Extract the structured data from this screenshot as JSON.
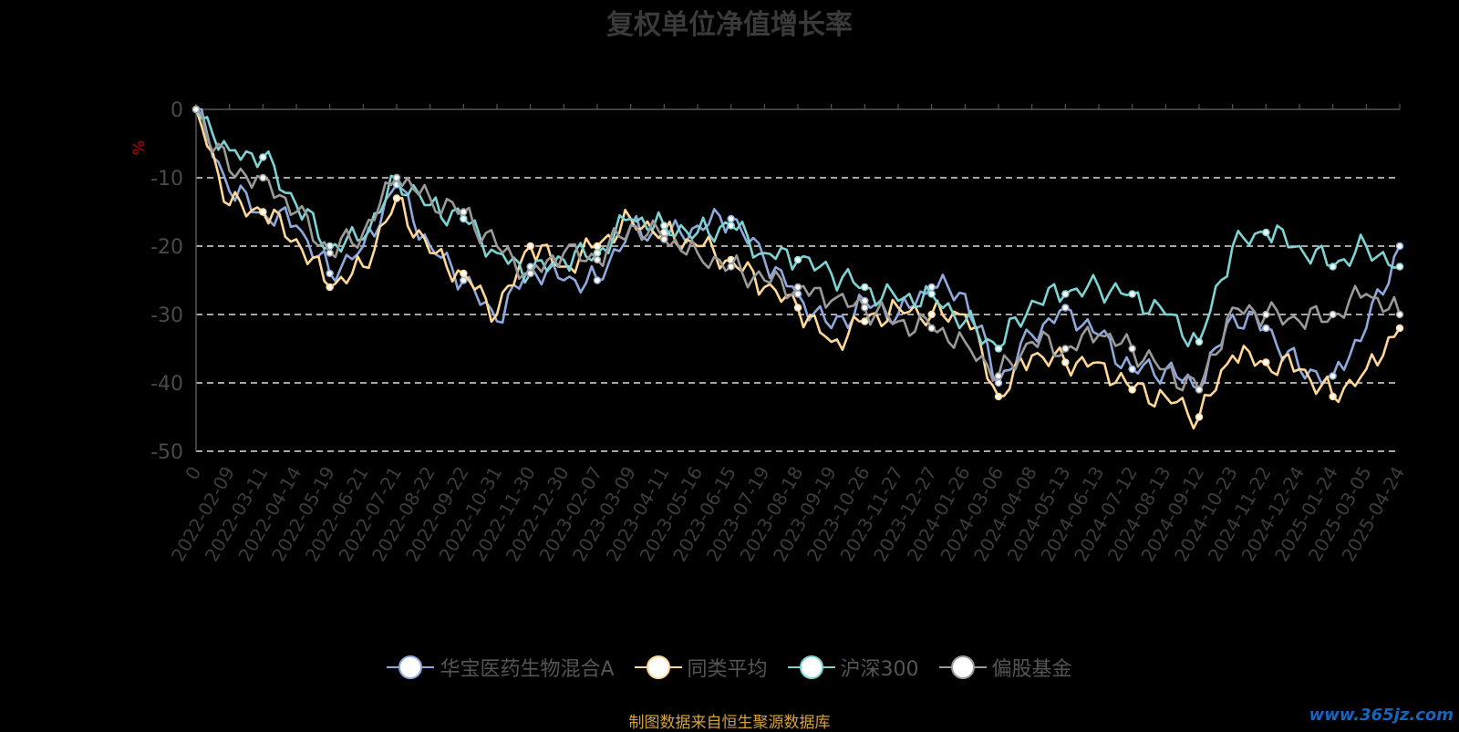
{
  "chart_data": {
    "type": "line",
    "title": "复权单位净值增长率",
    "ylabel": "%",
    "ylim": [
      -50,
      0
    ],
    "yticks": [
      0,
      -10,
      -20,
      -30,
      -40,
      -50
    ],
    "grid": true,
    "legend_position": "bottom",
    "x_tick_labels": [
      "0",
      "2022-02-09",
      "2022-03-11",
      "2022-04-14",
      "2022-05-19",
      "2022-06-21",
      "2022-07-21",
      "2022-08-22",
      "2022-09-22",
      "2022-10-31",
      "2022-11-30",
      "2022-12-30",
      "2023-02-07",
      "2023-03-09",
      "2023-04-11",
      "2023-05-16",
      "2023-06-15",
      "2023-07-19",
      "2023-08-18",
      "2023-09-19",
      "2023-10-26",
      "2023-11-27",
      "2023-12-27",
      "2024-01-26",
      "2024-03-06",
      "2024-04-08",
      "2024-05-13",
      "2024-06-13",
      "2024-07-12",
      "2024-08-13",
      "2024-09-12",
      "2024-10-23",
      "2024-11-22",
      "2024-12-24",
      "2025-01-24",
      "2025-03-05",
      "2025-04-24"
    ],
    "series": [
      {
        "name": "华宝医药生物混合A",
        "color": "#8fa9dc",
        "values": [
          0,
          -12,
          -15,
          -17,
          -24,
          -20,
          -11,
          -20,
          -25,
          -31,
          -23,
          -25,
          -25,
          -17,
          -19,
          -17,
          -16,
          -22,
          -27,
          -32,
          -28,
          -30,
          -26,
          -27,
          -40,
          -33,
          -29,
          -33,
          -38,
          -38,
          -41,
          -30,
          -32,
          -38,
          -39,
          -32,
          -20
        ]
      },
      {
        "name": "同类平均",
        "color": "#ffd898",
        "values": [
          0,
          -14,
          -15,
          -19,
          -26,
          -23,
          -13,
          -21,
          -24,
          -30,
          -20,
          -23,
          -20,
          -16,
          -18,
          -20,
          -22,
          -26,
          -29,
          -34,
          -31,
          -29,
          -30,
          -30,
          -42,
          -36,
          -37,
          -37,
          -41,
          -42,
          -45,
          -36,
          -37,
          -38,
          -42,
          -38,
          -32
        ]
      },
      {
        "name": "沪深300",
        "color": "#7ed3d3",
        "values": [
          0,
          -6,
          -7,
          -14,
          -20,
          -19,
          -10,
          -14,
          -16,
          -21,
          -24,
          -22,
          -21,
          -16,
          -17,
          -18,
          -17,
          -21,
          -22,
          -24,
          -26,
          -28,
          -27,
          -31,
          -35,
          -28,
          -27,
          -26,
          -27,
          -30,
          -34,
          -20,
          -18,
          -20,
          -23,
          -20,
          -23
        ]
      },
      {
        "name": "偏股基金",
        "color": "#9a9a9a",
        "values": [
          0,
          -9,
          -10,
          -15,
          -21,
          -18,
          -10,
          -13,
          -15,
          -20,
          -24,
          -21,
          -22,
          -17,
          -19,
          -21,
          -23,
          -25,
          -26,
          -28,
          -29,
          -31,
          -32,
          -34,
          -39,
          -34,
          -35,
          -33,
          -35,
          -38,
          -41,
          -29,
          -30,
          -31,
          -30,
          -27,
          -30
        ]
      }
    ]
  },
  "source_note": "制图数据来自恒生聚源数据库",
  "watermark": "www.365jz.com"
}
